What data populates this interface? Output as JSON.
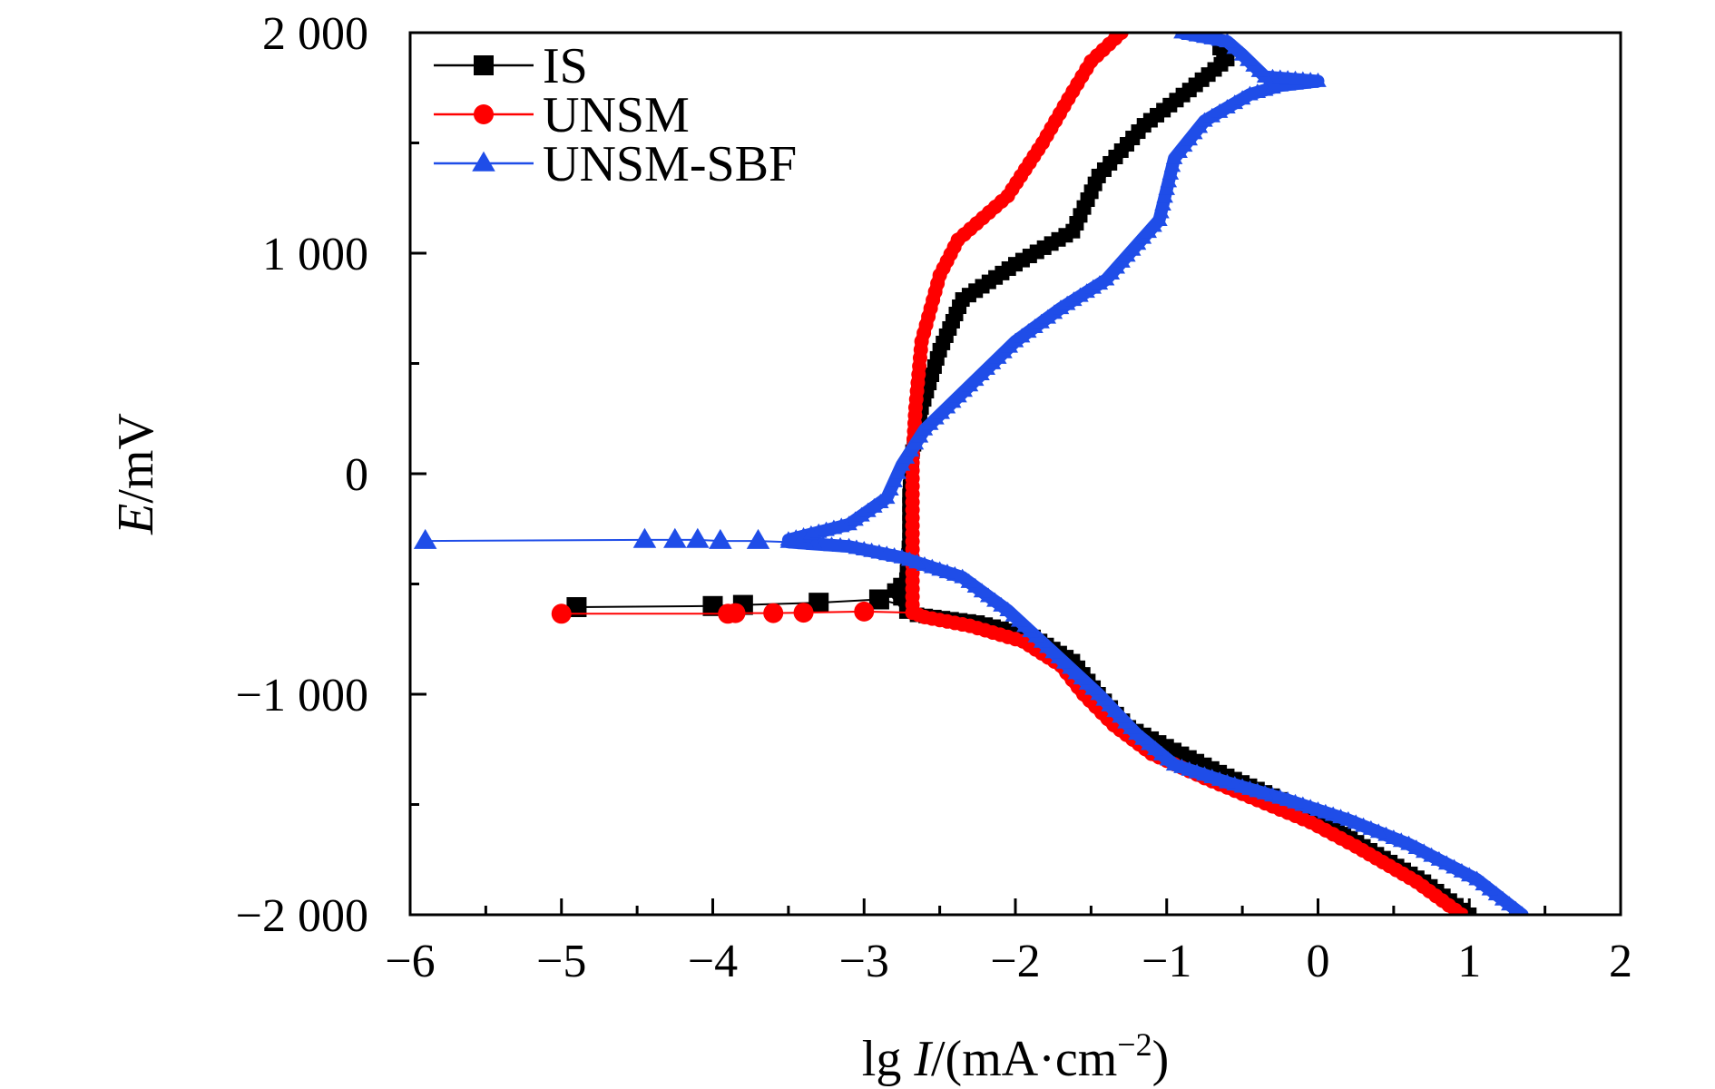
{
  "chart_data": {
    "type": "line",
    "title": "",
    "xlabel": {
      "prefix": "lg ",
      "var": "I",
      "unit": "/(mA·cm",
      "sup": "−2",
      "close": ")"
    },
    "ylabel": {
      "var": "E",
      "unit": "/mV"
    },
    "xlim": [
      -6,
      2
    ],
    "ylim": [
      -2000,
      2000
    ],
    "x_ticks": [
      -6,
      -5,
      -4,
      -3,
      -2,
      -1,
      0,
      1,
      2
    ],
    "x_tick_labels": [
      "−6",
      "−5",
      "−4",
      "−3",
      "−2",
      "−1",
      "0",
      "1",
      "2"
    ],
    "y_ticks": [
      -2000,
      -1000,
      0,
      1000,
      2000
    ],
    "y_tick_labels": [
      "−2 000",
      "−1 000",
      "0",
      "1 000",
      "2 000"
    ],
    "legend_position": "top-left",
    "grid": false,
    "series": [
      {
        "name": "IS",
        "color": "#000000",
        "marker": "square",
        "cathodic": [
          [
            1.0,
            -2000
          ],
          [
            0.7,
            -1850
          ],
          [
            0.3,
            -1690
          ],
          [
            0.0,
            -1560
          ],
          [
            -0.3,
            -1460
          ],
          [
            -0.6,
            -1370
          ],
          [
            -0.9,
            -1270
          ],
          [
            -1.25,
            -1150
          ],
          [
            -1.45,
            -1000
          ],
          [
            -1.62,
            -850
          ],
          [
            -1.88,
            -740
          ],
          [
            -2.25,
            -675
          ],
          [
            -2.65,
            -640
          ],
          [
            -2.72,
            -625
          ]
        ],
        "anodic": [
          [
            -2.72,
            -600
          ],
          [
            -2.8,
            -530
          ],
          [
            -2.72,
            -480
          ],
          [
            -2.7,
            -300
          ],
          [
            -2.7,
            -100
          ],
          [
            -2.68,
            100
          ],
          [
            -2.62,
            300
          ],
          [
            -2.5,
            560
          ],
          [
            -2.35,
            790
          ],
          [
            -2.0,
            950
          ],
          [
            -1.62,
            1100
          ],
          [
            -1.45,
            1350
          ],
          [
            -1.15,
            1580
          ],
          [
            -0.85,
            1740
          ],
          [
            -0.6,
            1880
          ],
          [
            -0.65,
            1930
          ]
        ],
        "passive_tail": [
          [
            -2.72,
            -600
          ],
          [
            -2.9,
            -570
          ],
          [
            -3.3,
            -585
          ],
          [
            -3.8,
            -595
          ],
          [
            -4.0,
            -600
          ],
          [
            -4.9,
            -605
          ]
        ]
      },
      {
        "name": "UNSM",
        "color": "#ff0000",
        "marker": "circle",
        "cathodic": [
          [
            0.95,
            -2000
          ],
          [
            0.65,
            -1850
          ],
          [
            0.25,
            -1690
          ],
          [
            -0.05,
            -1580
          ],
          [
            -0.4,
            -1480
          ],
          [
            -0.75,
            -1380
          ],
          [
            -1.1,
            -1270
          ],
          [
            -1.35,
            -1140
          ],
          [
            -1.55,
            -1000
          ],
          [
            -1.7,
            -870
          ],
          [
            -1.95,
            -760
          ],
          [
            -2.3,
            -690
          ],
          [
            -2.6,
            -650
          ],
          [
            -2.68,
            -630
          ]
        ],
        "anodic": [
          [
            -2.68,
            -630
          ],
          [
            -2.68,
            -450
          ],
          [
            -2.68,
            -200
          ],
          [
            -2.68,
            50
          ],
          [
            -2.66,
            300
          ],
          [
            -2.62,
            600
          ],
          [
            -2.5,
            900
          ],
          [
            -2.38,
            1060
          ],
          [
            -2.05,
            1260
          ],
          [
            -1.82,
            1500
          ],
          [
            -1.65,
            1700
          ],
          [
            -1.5,
            1870
          ],
          [
            -1.3,
            2000
          ]
        ],
        "passive_tail": [
          [
            -2.68,
            -630
          ],
          [
            -3.0,
            -625
          ],
          [
            -3.4,
            -630
          ],
          [
            -3.6,
            -632
          ],
          [
            -3.85,
            -632
          ],
          [
            -3.9,
            -635
          ],
          [
            -5.0,
            -635
          ]
        ]
      },
      {
        "name": "UNSM-SBF",
        "color": "#1f4de8",
        "marker": "triangle",
        "cathodic": [
          [
            1.35,
            -2000
          ],
          [
            1.05,
            -1840
          ],
          [
            0.6,
            -1680
          ],
          [
            0.2,
            -1570
          ],
          [
            -0.2,
            -1480
          ],
          [
            -0.6,
            -1400
          ],
          [
            -0.95,
            -1320
          ],
          [
            -1.2,
            -1180
          ],
          [
            -1.45,
            -1000
          ],
          [
            -1.75,
            -810
          ],
          [
            -2.05,
            -620
          ],
          [
            -2.35,
            -470
          ],
          [
            -2.75,
            -380
          ],
          [
            -3.1,
            -330
          ],
          [
            -3.5,
            -310
          ]
        ],
        "anodic": [
          [
            -3.5,
            -300
          ],
          [
            -3.1,
            -230
          ],
          [
            -2.85,
            -110
          ],
          [
            -2.75,
            40
          ],
          [
            -2.6,
            200
          ],
          [
            -2.3,
            400
          ],
          [
            -2.0,
            600
          ],
          [
            -1.7,
            750
          ],
          [
            -1.4,
            880
          ],
          [
            -1.05,
            1150
          ],
          [
            -0.95,
            1430
          ],
          [
            -0.75,
            1600
          ],
          [
            -0.45,
            1720
          ],
          [
            -0.25,
            1760
          ],
          [
            0.0,
            1780
          ],
          [
            -0.35,
            1800
          ],
          [
            -0.5,
            1900
          ],
          [
            -0.6,
            1960
          ],
          [
            -0.9,
            2000
          ]
        ],
        "passive_tail": [
          [
            -3.5,
            -310
          ],
          [
            -3.7,
            -305
          ],
          [
            -3.95,
            -305
          ],
          [
            -4.1,
            -300
          ],
          [
            -4.25,
            -300
          ],
          [
            -4.45,
            -300
          ],
          [
            -5.9,
            -305
          ]
        ]
      }
    ]
  }
}
